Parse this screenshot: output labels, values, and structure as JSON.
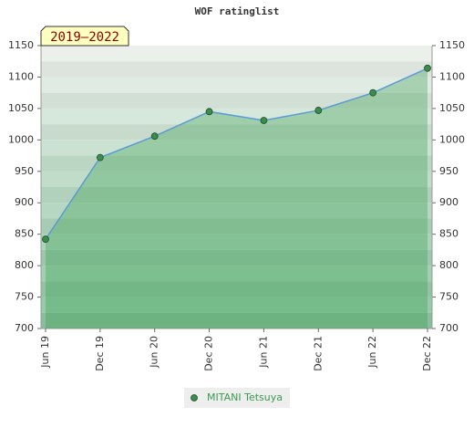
{
  "chart_data": {
    "type": "line",
    "title": "WOF ratinglist",
    "annotation": "2019–2022",
    "categories": [
      "Jun 19",
      "Dec 19",
      "Jun 20",
      "Dec 20",
      "Jun 21",
      "Dec 21",
      "Jun 22",
      "Dec 22"
    ],
    "series": [
      {
        "name": "MITANI Tetsuya",
        "color": "#5b9bd5",
        "marker_color": "#3c8c4c",
        "values": [
          842,
          972,
          1006,
          1045,
          1031,
          1047,
          1075,
          1114
        ]
      }
    ],
    "ylim": [
      700,
      1150
    ],
    "yticks": [
      700,
      750,
      800,
      850,
      900,
      950,
      1000,
      1050,
      1100,
      1150
    ]
  }
}
